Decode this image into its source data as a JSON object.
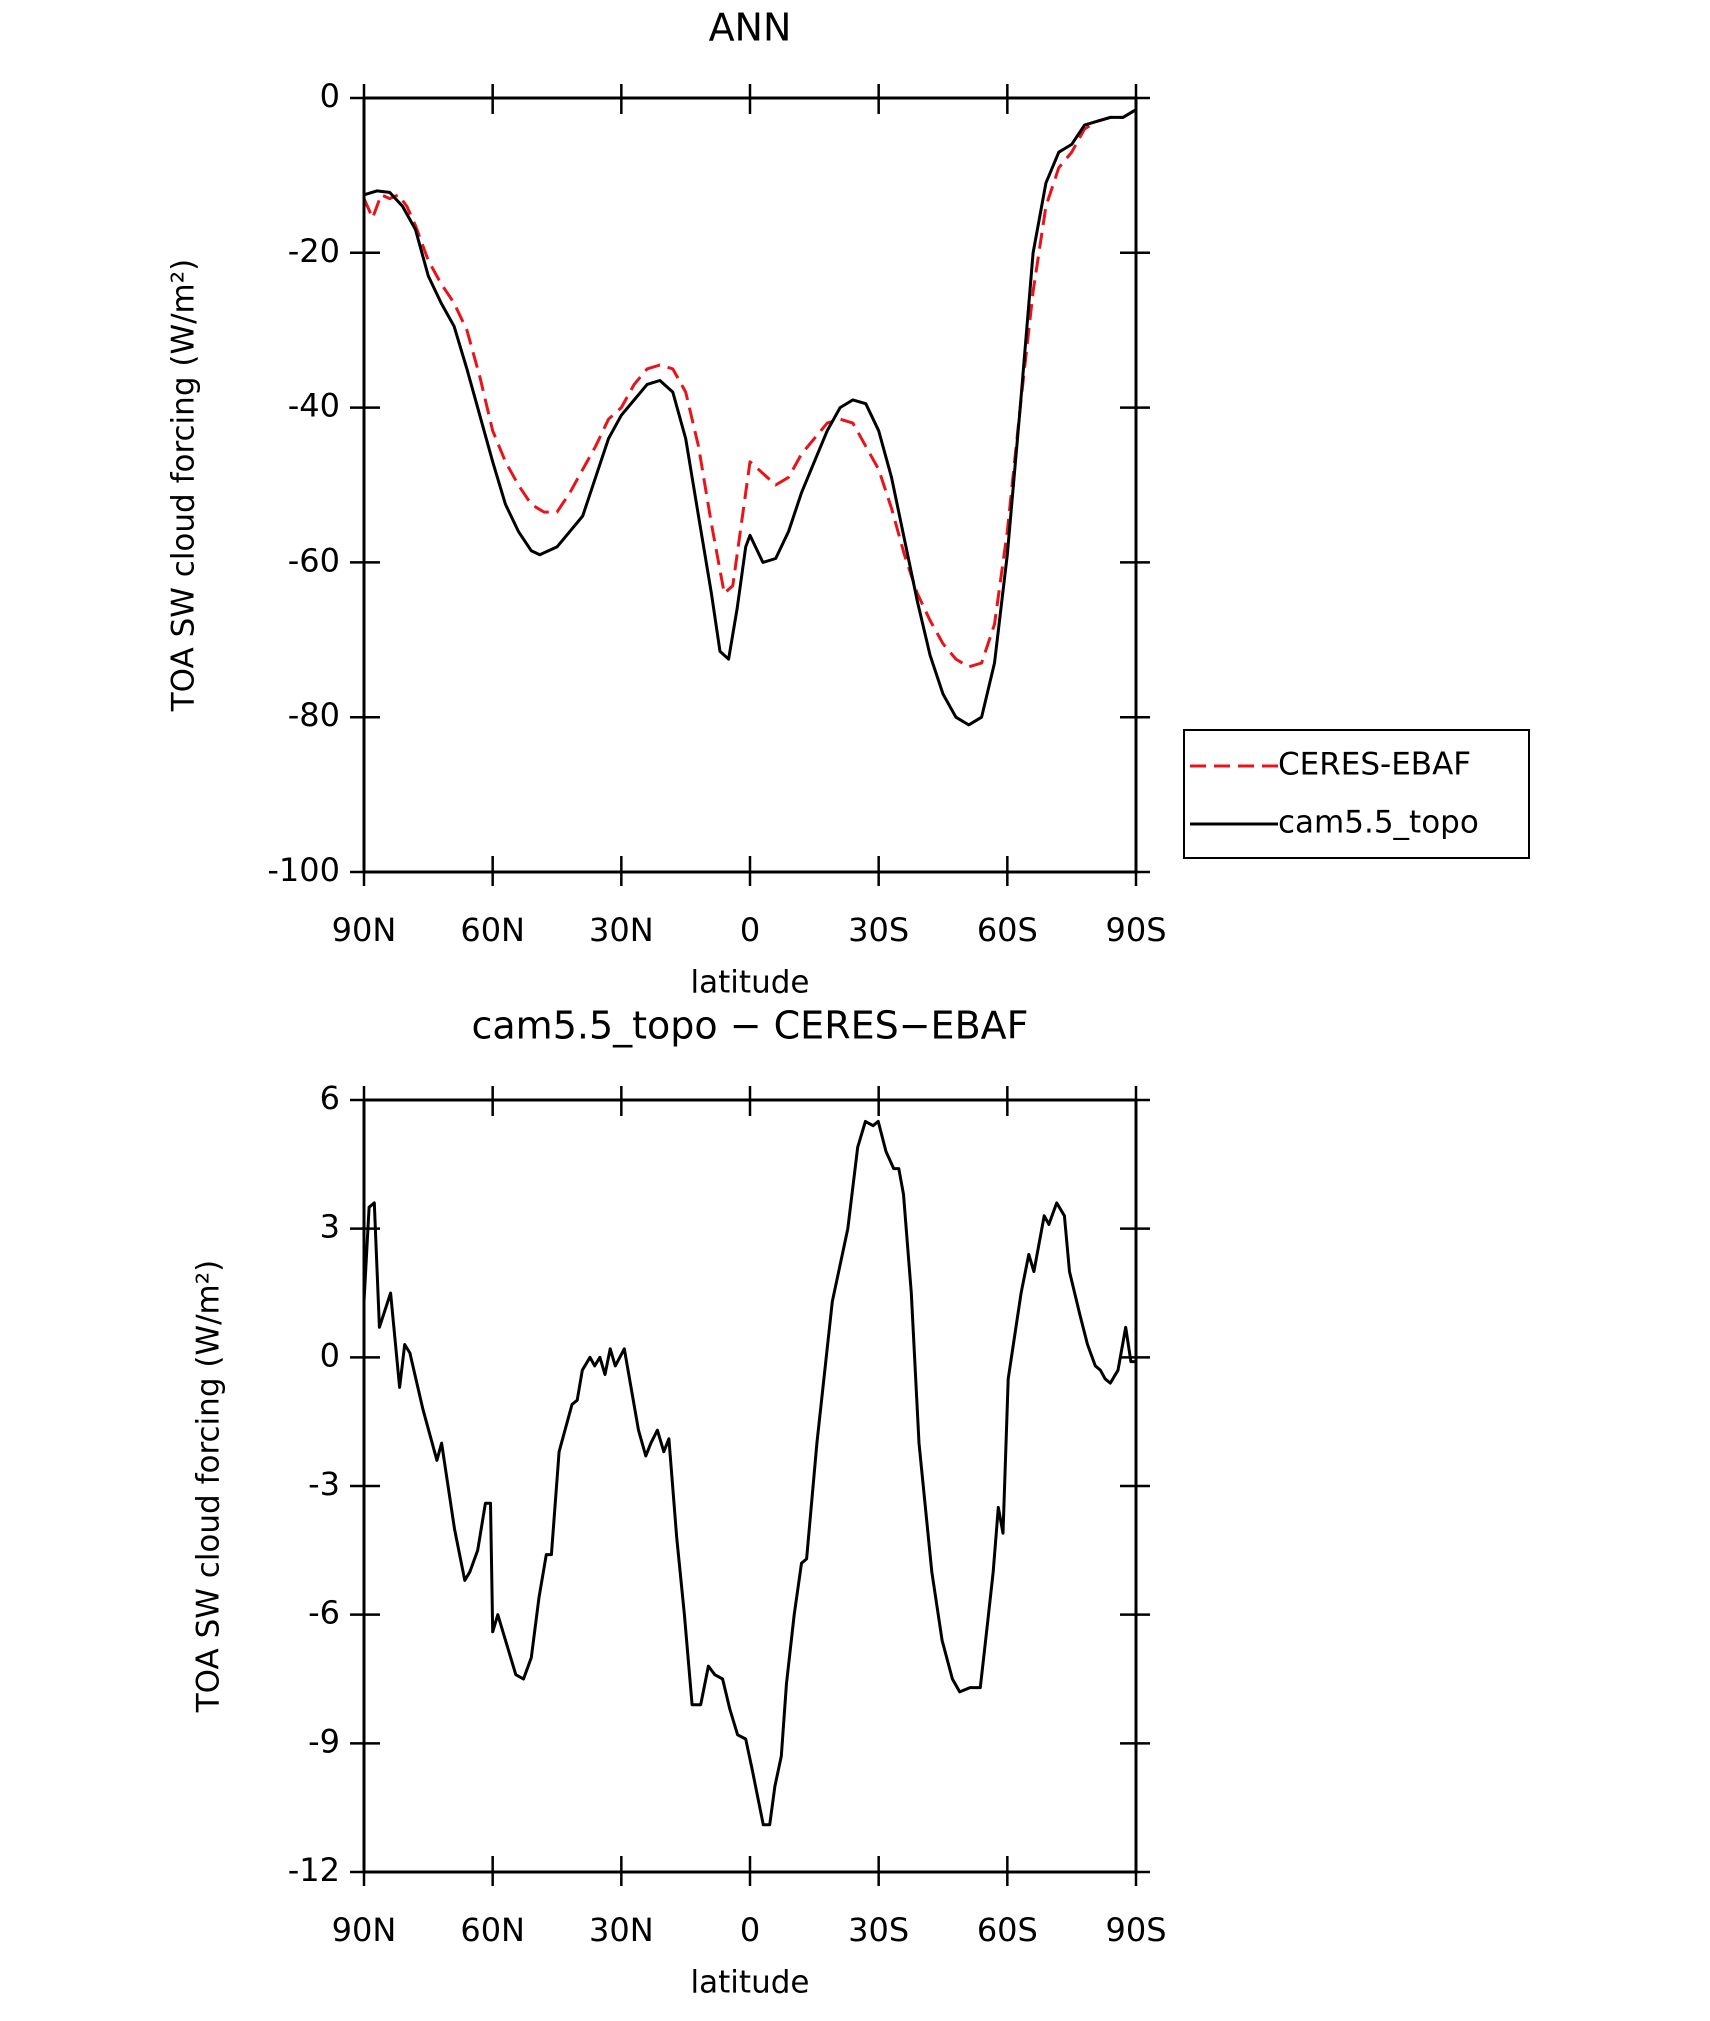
{
  "chart_data": [
    {
      "type": "line",
      "title": "ANN",
      "xlabel": "latitude",
      "ylabel": "TOA SW cloud forcing (W/m²)",
      "xlim": [
        90,
        -90
      ],
      "xticks": [
        {
          "value": 90,
          "label": "90N"
        },
        {
          "value": 60,
          "label": "60N"
        },
        {
          "value": 30,
          "label": "30N"
        },
        0,
        {
          "value": -30,
          "label": "30S"
        },
        {
          "value": -60,
          "label": "60S"
        },
        {
          "value": -90,
          "label": "90S"
        }
      ],
      "ylim": [
        -100,
        0
      ],
      "yticks": [
        -100,
        -80,
        -60,
        -40,
        -20,
        0
      ],
      "legend": "right",
      "series": [
        {
          "name": "CERES-EBAF",
          "color": "#e8141a",
          "dash": true,
          "x": [
            90,
            88,
            86,
            84,
            82,
            80,
            78,
            75,
            72,
            69,
            66,
            63,
            60,
            57,
            54,
            51,
            48,
            45,
            42,
            39,
            36,
            33,
            30,
            27,
            24,
            21,
            18,
            15,
            12,
            9,
            6,
            4,
            2,
            0,
            -3,
            -6,
            -9,
            -12,
            -15,
            -18,
            -21,
            -24,
            -27,
            -30,
            -33,
            -36,
            -39,
            -42,
            -45,
            -48,
            -51,
            -54,
            -57,
            -60,
            -63,
            -66,
            -69,
            -72,
            -75,
            -78,
            -81,
            -84,
            -87,
            -90
          ],
          "values": [
            -13,
            -15.5,
            -12.5,
            -13,
            -12.5,
            -14,
            -16.5,
            -21,
            -24,
            -26.5,
            -30,
            -36,
            -43,
            -47,
            -50,
            -52.5,
            -53.5,
            -53.5,
            -51,
            -48,
            -45,
            -41.5,
            -40,
            -37,
            -35,
            -34.5,
            -35,
            -38,
            -45,
            -55,
            -64,
            -63,
            -55,
            -47,
            -48.5,
            -50,
            -49,
            -46,
            -44,
            -42,
            -41.5,
            -42,
            -45,
            -48,
            -53,
            -59,
            -64,
            -67.5,
            -70.5,
            -72.5,
            -73.5,
            -73,
            -68,
            -56,
            -40,
            -25,
            -14,
            -9,
            -7,
            -4,
            -3,
            -2.5,
            -2.5,
            -1.5
          ]
        },
        {
          "name": "cam5.5_topo",
          "color": "#000000",
          "dash": false,
          "x": [
            90,
            87,
            84,
            81,
            78,
            75,
            72,
            69,
            66,
            63,
            60,
            57,
            54,
            51,
            49,
            45,
            42,
            39,
            36,
            33,
            30,
            27,
            24,
            21,
            18,
            15,
            12,
            9,
            7,
            5,
            3,
            1,
            0,
            -3,
            -6,
            -9,
            -12,
            -15,
            -18,
            -21,
            -24,
            -27,
            -30,
            -33,
            -36,
            -39,
            -42,
            -45,
            -48,
            -51,
            -54,
            -57,
            -60,
            -63,
            -66,
            -69,
            -72,
            -75,
            -78,
            -81,
            -84,
            -87,
            -90
          ],
          "values": [
            -12.5,
            -12,
            -12.2,
            -14,
            -17,
            -23,
            -26.5,
            -29.5,
            -35,
            -41,
            -47,
            -52.5,
            -56,
            -58.5,
            -59,
            -58,
            -56,
            -54,
            -49,
            -44,
            -41,
            -39,
            -37,
            -36.5,
            -38,
            -44,
            -54,
            -64,
            -71.5,
            -72.5,
            -66,
            -58,
            -56.5,
            -60,
            -59.5,
            -56,
            -51,
            -47,
            -43,
            -40,
            -39,
            -39.5,
            -43,
            -49,
            -57,
            -65,
            -72,
            -77,
            -80,
            -81,
            -80,
            -73,
            -59,
            -40,
            -20,
            -11,
            -7,
            -6,
            -3.5,
            -3,
            -2.5,
            -2.5,
            -1.5
          ]
        }
      ]
    },
    {
      "type": "line",
      "title": "cam5.5_topo − CERES−EBAF",
      "xlabel": "latitude",
      "ylabel": "TOA SW cloud forcing (W/m²)",
      "xlim": [
        90,
        -90
      ],
      "xticks": [
        {
          "value": 90,
          "label": "90N"
        },
        {
          "value": 60,
          "label": "60N"
        },
        {
          "value": 30,
          "label": "30N"
        },
        0,
        {
          "value": -30,
          "label": "30S"
        },
        {
          "value": -60,
          "label": "60S"
        },
        {
          "value": -90,
          "label": "90S"
        }
      ],
      "ylim": [
        -12,
        6
      ],
      "yticks": [
        -12,
        -9,
        -6,
        -3,
        0,
        3,
        6
      ],
      "series": [
        {
          "color": "#000000",
          "dash": false,
          "x": [
            90,
            88.8,
            87.6,
            86.4,
            83.8,
            81.7,
            80.5,
            79.3,
            76.3,
            73,
            71.9,
            68.9,
            66.5,
            65.3,
            63.5,
            61.7,
            60.5,
            60,
            58.8,
            56.4,
            54.6,
            52.8,
            51,
            49.2,
            47.5,
            46.3,
            44.5,
            41.5,
            40.3,
            39.1,
            37.3,
            36.2,
            35,
            33.8,
            32.6,
            31.4,
            29.3,
            26,
            24.3,
            23.1,
            21.6,
            20.1,
            18.9,
            17.1,
            15.3,
            13.5,
            11.5,
            9.7,
            8.2,
            6.4,
            4.7,
            2.9,
            1,
            -0.5,
            -3.1,
            -4.6,
            -5.8,
            -7.3,
            -8.5,
            -10.3,
            -12,
            -13.2,
            -15.6,
            -19.2,
            -22.8,
            -25.1,
            -26.9,
            -28.7,
            -29.9,
            -31.7,
            -33.5,
            -34.7,
            -35.8,
            -37.6,
            -39.4,
            -42.4,
            -44.8,
            -47.2,
            -48.9,
            -51.3,
            -53.7,
            -55.5,
            -56.7,
            -57.9,
            -59,
            -60.2,
            -63.2,
            -65,
            -66.2,
            -68.6,
            -69.7,
            -71.5,
            -73.3,
            -74.5,
            -76.9,
            -78.7,
            -80.5,
            -81.7,
            -82.8,
            -84,
            -85.8,
            -87.6,
            -88.8,
            -90
          ],
          "values": [
            1.3,
            3.5,
            3.6,
            0.7,
            1.5,
            -0.7,
            0.3,
            0.1,
            -1.2,
            -2.4,
            -2,
            -4,
            -5.2,
            -5,
            -4.5,
            -3.4,
            -3.4,
            -6.4,
            -6,
            -6.8,
            -7.4,
            -7.5,
            -7,
            -5.6,
            -4.6,
            -4.6,
            -2.2,
            -1.1,
            -1,
            -0.3,
            0,
            -0.2,
            0,
            -0.4,
            0.2,
            -0.2,
            0.2,
            -1.7,
            -2.3,
            -2,
            -1.7,
            -2.2,
            -1.9,
            -4.2,
            -6,
            -8.1,
            -8.1,
            -7.2,
            -7.4,
            -7.5,
            -8.2,
            -8.8,
            -8.9,
            -9.6,
            -10.9,
            -10.9,
            -10,
            -9.3,
            -7.6,
            -6,
            -4.8,
            -4.7,
            -2,
            1.3,
            3,
            4.9,
            5.5,
            5.4,
            5.5,
            4.8,
            4.4,
            4.4,
            3.8,
            1.5,
            -2,
            -5,
            -6.6,
            -7.5,
            -7.8,
            -7.7,
            -7.7,
            -6.1,
            -5,
            -3.5,
            -4.1,
            -0.5,
            1.5,
            2.4,
            2,
            3.3,
            3.1,
            3.6,
            3.3,
            2,
            1,
            0.3,
            -0.2,
            -0.3,
            -0.5,
            -0.6,
            -0.3,
            0.7,
            -0.1,
            -0.1
          ]
        }
      ]
    }
  ]
}
